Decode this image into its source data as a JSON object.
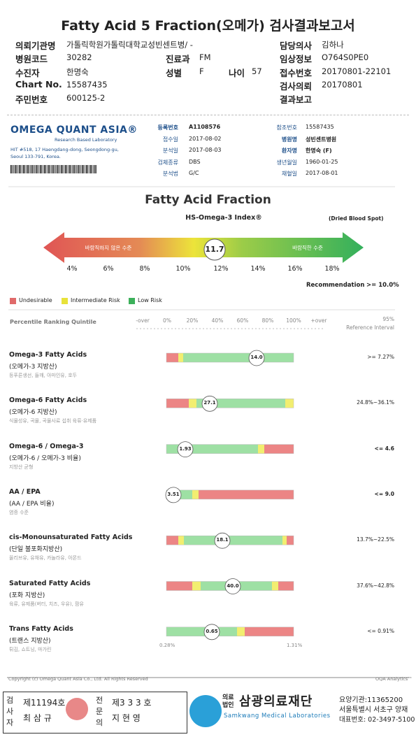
{
  "title": "Fatty Acid 5 Fraction(오메가) 검사결과보고서",
  "header": {
    "fields": [
      {
        "label": "의뢰기관명",
        "value": "가톨릭학원가톨릭대학교성빈센트병/ -"
      },
      {
        "label": "담당의사",
        "value": "김하나"
      },
      {
        "label": "병원코드",
        "value": "30282"
      },
      {
        "label": "진료과",
        "value": "FM"
      },
      {
        "label": "임상정보",
        "value": "O764S0PE0"
      },
      {
        "label": "수진자",
        "value": "한명숙"
      },
      {
        "label": "성별",
        "value": "F"
      },
      {
        "label": "나이",
        "value": "57"
      },
      {
        "label": "접수번호",
        "value": "20170801-22101"
      },
      {
        "label": "Chart No.",
        "value": "15587435"
      },
      {
        "label": "검사의뢰",
        "value": "20170801"
      },
      {
        "label": "주민번호",
        "value": "600125-2"
      },
      {
        "label": "결과보고"
      }
    ]
  },
  "lab": {
    "name": "OMEGA QUANT ASIA®",
    "tagline": "Research Based Laboratory",
    "address": [
      "HIT #518, 17 Haengdang-dong, Seongdong-gu,",
      "Seoul 133-791, Korea."
    ],
    "left_fields": [
      {
        "label": "등록번호",
        "value": "A1108576"
      },
      {
        "label": "접수일",
        "value": "2017-08-02"
      },
      {
        "label": "분석일",
        "value": "2017-08-03"
      },
      {
        "label": "검체종류",
        "value": "DBS"
      },
      {
        "label": "분석법",
        "value": "G/C"
      }
    ],
    "right_fields": [
      {
        "label": "참조번호",
        "value": "15587435"
      },
      {
        "label": "병원명",
        "value": "성빈센트병원"
      },
      {
        "label": "환자명",
        "value": "한명숙 (F)"
      },
      {
        "label": "생년월일",
        "value": "1960-01-25"
      },
      {
        "label": "채혈일",
        "value": "2017-08-01"
      }
    ]
  },
  "index": {
    "title": "Fatty Acid Fraction",
    "name": "HS-Omega-3 Index®",
    "specimen": "(Dried Blood Spot)",
    "low_label": "바람직하지 않은 수준",
    "high_label": "바람직한 수준",
    "value": "11.7",
    "scale": [
      "4%",
      "6%",
      "8%",
      "10%",
      "12%",
      "14%",
      "16%",
      "18%"
    ],
    "recommendation_label": "Recommendation",
    "recommendation": ">= 10.0%"
  },
  "legend": [
    "Undesirable",
    "Intermediate Risk",
    "Low Risk"
  ],
  "quintile": {
    "label": "Percentile Ranking Quintile",
    "ticks": [
      "-over",
      "0%",
      "20%",
      "40%",
      "60%",
      "80%",
      "100%",
      "+over"
    ],
    "reference_header": [
      "95%",
      "Reference Interval"
    ]
  },
  "rows": [
    {
      "name": "Omega-3 Fatty Acids",
      "korean": "(오메가-3 지방산)",
      "sources": "등푸른생선, 들깨, 아마인유, 호두",
      "value": "14.0",
      "reference": ">= 7.27%"
    },
    {
      "name": "Omega-6 Fatty Acids",
      "korean": "(오메가-6 지방산)",
      "sources": "식물성유, 곡물, 곡물사료 섭취 육류·유제품",
      "value": "27.1",
      "reference": "24.8%~36.1%"
    },
    {
      "name": "Omega-6 / Omega-3",
      "korean": "(오메가-6 / 오메가-3 비율)",
      "sources": "지방산 균형",
      "value": "1.93",
      "reference": "<= 4.6"
    },
    {
      "name": "AA / EPA",
      "korean": "(AA / EPA 비율)",
      "sources": "염증 수준",
      "value": "3.51",
      "reference": "<= 9.0"
    },
    {
      "name": "cis-Monounsaturated Fatty Acids",
      "korean": "(단일 불포화지방산)",
      "sources": "올리브유, 유채유, 카놀라유, 아몬드",
      "value": "18.1",
      "reference": "13.7%~22.5%"
    },
    {
      "name": "Saturated Fatty Acids",
      "korean": "(포화 지방산)",
      "sources": "육류, 유제품(버터, 치즈, 우유), 팜유",
      "value": "40.0",
      "reference": "37.6%~42.8%"
    },
    {
      "name": "Trans Fatty Acids",
      "korean": "(트랜스 지방산)",
      "sources": "튀김, 쇼트닝, 마가린",
      "value": "0.65",
      "reference": "<= 0.91%",
      "range_labels": [
        "0.28%",
        "1.31%"
      ]
    }
  ],
  "footer": {
    "copyright": "Copyright (c) Omega Quant Asia Co., Ltd. All Rights Reserved",
    "brand": "OQA Analytics™"
  },
  "signature": {
    "inspector": {
      "role": "검사자",
      "license": "제11194호",
      "name": "최 삼 규"
    },
    "specialist": {
      "role": "전문의",
      "license": "제3 3 3 호",
      "name": "지 현 영"
    },
    "org": {
      "logo": "SML",
      "type": "의료법인",
      "name": "삼광의료재단",
      "english": "Samkwang Medical Laboratories",
      "code": "요양기관:11365200",
      "address": "서울특별시 서초구 양재",
      "phone": "대표번호: 02-3497-5100"
    }
  }
}
